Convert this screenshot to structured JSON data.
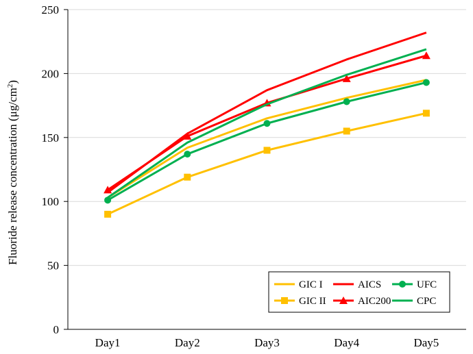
{
  "chart_data": {
    "type": "line",
    "title": "",
    "xlabel": "",
    "ylabel": "Fluoride release concentration (μg/cm",
    "ylabel_superscript": "2",
    "ylabel_close": ")",
    "categories": [
      "Day1",
      "Day2",
      "Day3",
      "Day4",
      "Day5"
    ],
    "ylim": [
      0,
      250
    ],
    "yticks": [
      0,
      50,
      100,
      150,
      200,
      250
    ],
    "grid": "horizontal",
    "legend_position": "bottom-right",
    "series": [
      {
        "name": "GIC I",
        "color": "#FFC000",
        "marker": "none",
        "values": [
          103,
          142,
          165,
          181,
          195
        ]
      },
      {
        "name": "GIC II",
        "color": "#FFC000",
        "marker": "square",
        "values": [
          90,
          119,
          140,
          155,
          169
        ]
      },
      {
        "name": "AICS",
        "color": "#FF0000",
        "marker": "none",
        "values": [
          107,
          153,
          187,
          211,
          232
        ]
      },
      {
        "name": "AIC200",
        "color": "#FF0000",
        "marker": "triangle",
        "values": [
          109,
          151,
          177,
          196,
          214
        ]
      },
      {
        "name": "UFC",
        "color": "#00B050",
        "marker": "circle",
        "values": [
          101,
          137,
          161,
          178,
          193
        ]
      },
      {
        "name": "CPC",
        "color": "#00B050",
        "marker": "none",
        "values": [
          103,
          146,
          176,
          199,
          219
        ]
      }
    ]
  }
}
